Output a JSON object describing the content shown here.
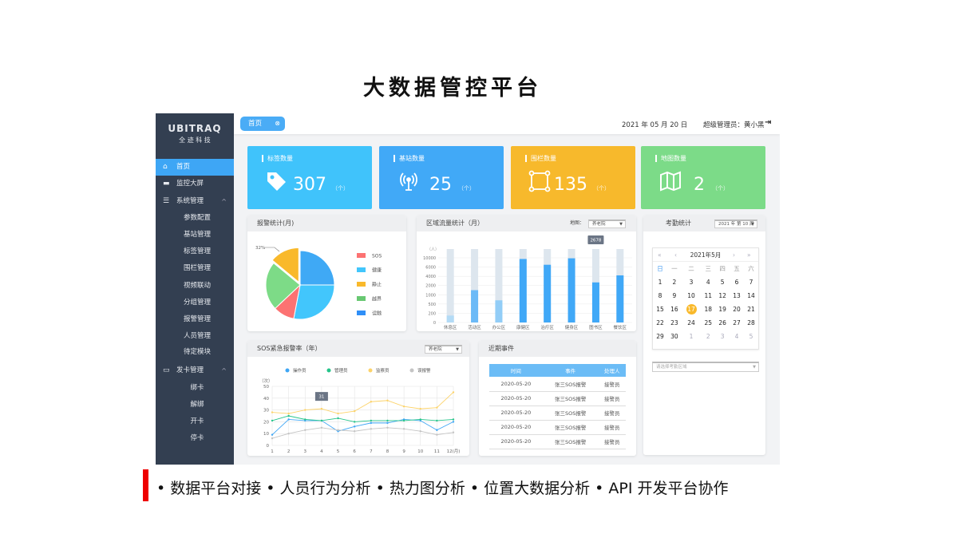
{
  "slide_title": "大数据管控平台",
  "bullets": "• 数据平台对接 • 人员行为分析 • 热力图分析 • 位置大数据分析 • API 开发平台协作",
  "colors": {
    "accent": "#3ea6f5",
    "sidebar": "#333f51",
    "card1": "#40c3fb",
    "card2": "#41a9f7",
    "card3": "#f7b92c",
    "card4": "#7cdb88",
    "bullet_bar": "#e00000"
  },
  "logo": {
    "brand": "UBITRAQ",
    "subtitle": "全 迹 科 技"
  },
  "sidebar": {
    "items": [
      {
        "label": "首页",
        "icon": "home-icon",
        "active": true
      },
      {
        "label": "监控大屏",
        "icon": "monitor-icon"
      },
      {
        "label": "系统管理",
        "icon": "list-icon",
        "expanded": true
      },
      {
        "label": "参数配置"
      },
      {
        "label": "基站管理"
      },
      {
        "label": "标签管理"
      },
      {
        "label": "围栏管理"
      },
      {
        "label": "视频联动"
      },
      {
        "label": "分组管理"
      },
      {
        "label": "报警管理"
      },
      {
        "label": "人员管理"
      },
      {
        "label": "待定模块"
      },
      {
        "label": "发卡管理",
        "icon": "card-icon",
        "expanded": true
      },
      {
        "label": "绑卡"
      },
      {
        "label": "解绑"
      },
      {
        "label": "开卡"
      },
      {
        "label": "停卡"
      }
    ]
  },
  "header": {
    "tab": "首页",
    "date": "2021 年 05 月 20 日",
    "user": "超级管理员：黄小黑"
  },
  "cards": [
    {
      "label": "标签数量",
      "value": "307",
      "unit": "（个）",
      "icon": "tag-icon"
    },
    {
      "label": "基站数量",
      "value": "25",
      "unit": "（个）",
      "icon": "antenna-icon"
    },
    {
      "label": "围栏数量",
      "value": "135",
      "unit": "（个）",
      "icon": "fence-icon"
    },
    {
      "label": "地图数量",
      "value": "2",
      "unit": "（个）",
      "icon": "map-icon"
    }
  ],
  "pie_panel": {
    "title": "报警统计(月)",
    "callout": "32%"
  },
  "bar_panel": {
    "title": "区域流量统计（月）",
    "map_label": "地图：",
    "map_select": "养老院",
    "tooltip": "2678"
  },
  "line_panel": {
    "title": "SOS紧急报警率（年）",
    "select": "养老院",
    "tooltip": "31"
  },
  "events": {
    "title": "近期事件",
    "columns": [
      "时间",
      "事件",
      "处理人"
    ],
    "rows": [
      [
        "2020-05-20",
        "张三SOS报警",
        "接警员"
      ],
      [
        "2020-05-20",
        "张三SOS报警",
        "接警员"
      ],
      [
        "2020-05-20",
        "张三SOS报警",
        "接警员"
      ],
      [
        "2020-05-20",
        "张三SOS报警",
        "接警员"
      ],
      [
        "2020-05-20",
        "张三SOS报警",
        "接警员"
      ]
    ]
  },
  "attendance": {
    "title": "考勤统计",
    "week_select": "2021 年 第 10 周",
    "month": "2021年5月",
    "nav": [
      "«",
      "‹",
      "›",
      "»"
    ],
    "weekdays": [
      "日",
      "一",
      "二",
      "三",
      "四",
      "五",
      "六"
    ],
    "days": [
      "1",
      "2",
      "3",
      "4",
      "5",
      "6",
      "7",
      "8",
      "9",
      "10",
      "11",
      "12",
      "13",
      "14",
      "15",
      "16",
      "17",
      "18",
      "19",
      "20",
      "21",
      "22",
      "23",
      "24",
      "25",
      "26",
      "27",
      "28",
      "29",
      "30",
      "1",
      "2",
      "3",
      "4",
      "5"
    ],
    "selected": "17",
    "area_placeholder": "请选择考勤区域"
  },
  "chart_data": [
    {
      "type": "pie",
      "legend": [
        "SOS",
        "健康",
        "静止",
        "越界",
        "误触"
      ],
      "slices": [
        {
          "name": "误触",
          "value": 25,
          "color": "#3fa9f5"
        },
        {
          "name": "健康",
          "value": 28,
          "color": "#42c6fc"
        },
        {
          "name": "SOS",
          "value": 10,
          "color": "#fc7272"
        },
        {
          "name": "越界",
          "value": 23,
          "color": "#7ddb87"
        },
        {
          "name": "静止",
          "value": 14,
          "color": "#f9b92b"
        }
      ],
      "legend_placement": "right"
    },
    {
      "type": "bar",
      "categories": [
        "休息区",
        "活动区",
        "办公区",
        "康健区",
        "治疗区",
        "健身区",
        "图书区",
        "餐饮区"
      ],
      "values": [
        150,
        1500,
        700,
        9500,
        7000,
        9800,
        2678,
        4200
      ],
      "ylabel": "（人）",
      "yticks": [
        "0",
        "200",
        "500",
        "1000",
        "2000",
        "4000",
        "6000",
        "10000"
      ],
      "ylim": [
        0,
        10000
      ],
      "background_bars": true
    },
    {
      "type": "line",
      "x": [
        "1",
        "2",
        "3",
        "4",
        "5",
        "6",
        "7",
        "8",
        "9",
        "10",
        "11",
        "12(月)"
      ],
      "ylabel": "（次）",
      "ylim": [
        0,
        50
      ],
      "yticks": [
        "0",
        "10",
        "20",
        "30",
        "40",
        "50"
      ],
      "grid": true,
      "legend_placement": "top",
      "series": [
        {
          "name": "操作员",
          "color": "#3ea6f5",
          "values": [
            9,
            22,
            21,
            21,
            12,
            16,
            19,
            19,
            22,
            21,
            13,
            20
          ]
        },
        {
          "name": "管理员",
          "color": "#25c48a",
          "values": [
            21,
            25,
            22,
            21,
            23,
            20,
            21,
            21,
            21,
            22,
            21,
            22
          ]
        },
        {
          "name": "监察员",
          "color": "#fcd36a",
          "values": [
            28,
            27,
            30,
            31,
            27,
            29,
            37,
            38,
            33,
            31,
            32,
            45
          ]
        },
        {
          "name": "误报警",
          "color": "#c4c4c4",
          "values": [
            6,
            10,
            13,
            15,
            13,
            12,
            14,
            15,
            14,
            12,
            9,
            11
          ]
        }
      ]
    }
  ]
}
